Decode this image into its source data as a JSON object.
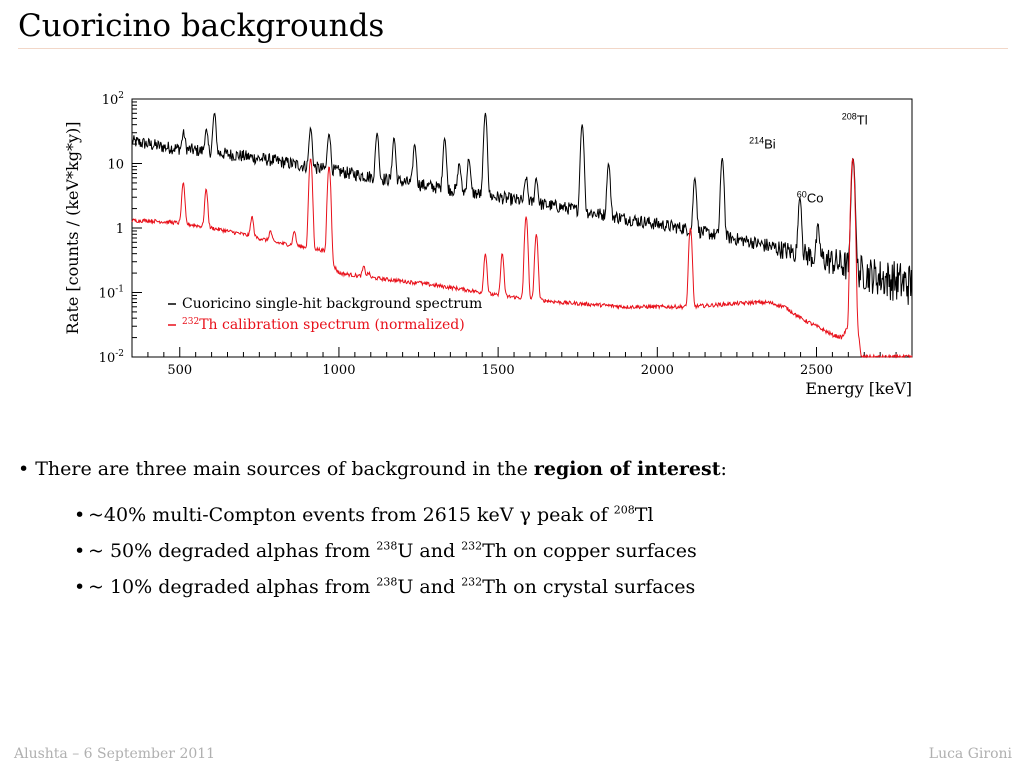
{
  "slide": {
    "title": "Cuoricino backgrounds"
  },
  "text": {
    "main_prefix": "There are three main sources of background in the ",
    "main_bold": "region of interest",
    "main_suffix": ":",
    "b1_a": "~40% multi-Compton events from 2615 keV γ peak of ",
    "b1_sup": "208",
    "b1_b": "Tl",
    "b2_a": "~ 50% degraded alphas from ",
    "b2_sup1": "238",
    "b2_mid": "U and ",
    "b2_sup2": "232",
    "b2_b": "Th on copper surfaces",
    "b3_a": "~ 10% degraded alphas from ",
    "b3_sup1": "238",
    "b3_mid": "U and ",
    "b3_sup2": "232",
    "b3_b": "Th on crystal surfaces"
  },
  "footer": {
    "left": "Alushta – 6 September 2011",
    "right": "Luca Gironi"
  },
  "chart_data": {
    "type": "line",
    "xlabel": "Energy [keV]",
    "ylabel": "Rate [counts / (keV*kg*y)]",
    "xlim": [
      350,
      2800
    ],
    "ylim": [
      0.01,
      100
    ],
    "log_y": true,
    "x_ticks": [
      "500",
      "1000",
      "1500",
      "2000",
      "2500"
    ],
    "y_ticks": [
      {
        "base": "10",
        "exp": "2"
      },
      {
        "base": "10",
        "exp": ""
      },
      {
        "base": "1",
        "exp": ""
      },
      {
        "base": "10",
        "exp": "-1"
      },
      {
        "base": "10",
        "exp": "-2"
      }
    ],
    "legend_position": "bottom-left",
    "colors": {
      "background": "#000000",
      "calibration": "#e8101a"
    },
    "annotations": [
      {
        "sup": "208",
        "text": "Tl",
        "x": 2620,
        "y": 40
      },
      {
        "sup": "214",
        "text": "Bi",
        "x": 2330,
        "y": 17
      },
      {
        "sup": "60",
        "text": "Co",
        "x": 2480,
        "y": 2.5
      }
    ],
    "series": [
      {
        "name": "Cuoricino single-hit background spectrum",
        "name_sup": "",
        "name_tail": "",
        "color": "#000000",
        "x": [
          350,
          400,
          450,
          500,
          550,
          600,
          700,
          800,
          900,
          1000,
          1100,
          1200,
          1300,
          1400,
          1500,
          1600,
          1700,
          1800,
          1900,
          2000,
          2100,
          2200,
          2300,
          2400,
          2500,
          2550,
          2600,
          2650,
          2700,
          2750,
          2800
        ],
        "y": [
          22,
          20,
          18,
          17,
          16,
          15,
          13,
          11,
          9,
          7.5,
          6.2,
          5.2,
          4.3,
          3.6,
          3,
          2.5,
          2.1,
          1.7,
          1.4,
          1.15,
          0.95,
          0.75,
          0.6,
          0.45,
          0.35,
          0.3,
          0.25,
          0.2,
          0.17,
          0.15,
          0.13
        ],
        "peaks": [
          {
            "x": 512,
            "y": 30
          },
          {
            "x": 583,
            "y": 32
          },
          {
            "x": 609,
            "y": 60
          },
          {
            "x": 911,
            "y": 35
          },
          {
            "x": 969,
            "y": 30
          },
          {
            "x": 1120,
            "y": 30
          },
          {
            "x": 1173,
            "y": 25
          },
          {
            "x": 1238,
            "y": 20
          },
          {
            "x": 1332,
            "y": 25
          },
          {
            "x": 1378,
            "y": 10
          },
          {
            "x": 1408,
            "y": 12
          },
          {
            "x": 1460,
            "y": 60
          },
          {
            "x": 1588,
            "y": 6
          },
          {
            "x": 1620,
            "y": 6
          },
          {
            "x": 1764,
            "y": 40
          },
          {
            "x": 1847,
            "y": 10
          },
          {
            "x": 2118,
            "y": 6
          },
          {
            "x": 2204,
            "y": 12
          },
          {
            "x": 2448,
            "y": 3
          },
          {
            "x": 2505,
            "y": 1
          },
          {
            "x": 2615,
            "y": 12
          }
        ]
      },
      {
        "name": " Th calibration spectrum (normalized)",
        "name_sup": "232",
        "name_tail": "",
        "color": "#e8101a",
        "x": [
          350,
          400,
          500,
          600,
          700,
          800,
          900,
          950,
          1000,
          1100,
          1200,
          1300,
          1400,
          1500,
          1600,
          1700,
          1800,
          1900,
          2000,
          2100,
          2200,
          2300,
          2350,
          2400,
          2450,
          2500,
          2550,
          2580,
          2600,
          2610,
          2640,
          2700,
          2800
        ],
        "y": [
          1.3,
          1.3,
          1.2,
          1.0,
          0.8,
          0.6,
          0.5,
          0.45,
          0.2,
          0.17,
          0.15,
          0.13,
          0.11,
          0.09,
          0.08,
          0.07,
          0.065,
          0.06,
          0.06,
          0.06,
          0.065,
          0.07,
          0.07,
          0.06,
          0.04,
          0.03,
          0.022,
          0.02,
          0.03,
          0.2,
          0.01,
          0.01,
          0.01
        ],
        "peaks": [
          {
            "x": 511,
            "y": 5
          },
          {
            "x": 583,
            "y": 4
          },
          {
            "x": 727,
            "y": 1.5
          },
          {
            "x": 785,
            "y": 0.9
          },
          {
            "x": 860,
            "y": 0.9
          },
          {
            "x": 911,
            "y": 12
          },
          {
            "x": 969,
            "y": 9
          },
          {
            "x": 1078,
            "y": 0.25
          },
          {
            "x": 1093,
            "y": 0.2
          },
          {
            "x": 1250,
            "y": 0.15
          },
          {
            "x": 1460,
            "y": 0.4
          },
          {
            "x": 1513,
            "y": 0.4
          },
          {
            "x": 1588,
            "y": 1.5
          },
          {
            "x": 1620,
            "y": 0.8
          },
          {
            "x": 2104,
            "y": 1.0
          },
          {
            "x": 2614,
            "y": 12
          }
        ]
      }
    ]
  }
}
